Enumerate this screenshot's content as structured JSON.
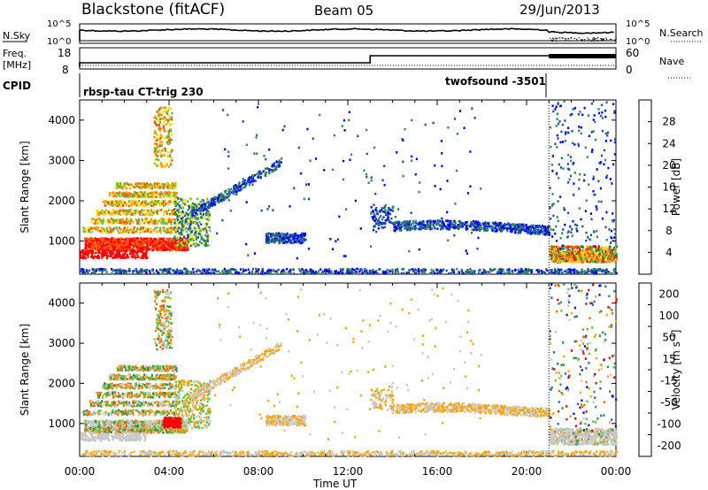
{
  "header": {
    "title": "Blackstone (fitACF)",
    "beam": "Beam 05",
    "date": "29/Jun/2013"
  },
  "top_panels": {
    "nsky_label": "N.Sky",
    "nsky_ticks": [
      "10^5",
      "10^0"
    ],
    "nsearch_label": "N.Search",
    "nsearch_ticks": [
      "10^5",
      "10^0"
    ],
    "freq_label": "Freq.",
    "freq_unit": "[MHz]",
    "freq_ticks": [
      "18",
      "8"
    ],
    "nave_label": "Nave",
    "nave_ticks": [
      "60",
      "0"
    ],
    "cpid_label": "CPID",
    "cpid_1": "rbsp-tau CT-trig 230",
    "cpid_2": "twofsound -3501"
  },
  "chart_data": [
    {
      "type": "heatmap",
      "title": "",
      "xlabel": "Time UT",
      "ylabel": "Slant Range [km]",
      "x_ticks": [
        "00:00",
        "04:00",
        "08:00",
        "12:00",
        "16:00",
        "20:00",
        "00:00"
      ],
      "y_ticks": [
        1000,
        2000,
        3000,
        4000
      ],
      "xlim": [
        0,
        24
      ],
      "ylim": [
        180,
        4500
      ],
      "colorbar": {
        "label": "Power [dB]",
        "ticks": [
          "4",
          "8",
          "12",
          "16",
          "20",
          "24",
          "28"
        ],
        "colors": [
          "#0000ff",
          "#1f4fa8",
          "#2e8b57",
          "#55c04a",
          "#ffe000",
          "#ffa500",
          "#ff5a00",
          "#ff0000"
        ]
      }
    },
    {
      "type": "heatmap",
      "title": "",
      "xlabel": "Time UT",
      "ylabel": "Slant Range [km]",
      "x_ticks": [
        "00:00",
        "04:00",
        "08:00",
        "12:00",
        "16:00",
        "20:00",
        "00:00"
      ],
      "y_ticks": [
        1000,
        2000,
        3000,
        4000
      ],
      "xlim": [
        0,
        24
      ],
      "ylim": [
        180,
        4500
      ],
      "colorbar": {
        "label": "Velocity [m s",
        "label_sup": "-1",
        "label_end": "]",
        "ticks": [
          "200",
          "100",
          "50",
          "15",
          "-15",
          "-50",
          "-100",
          "-200"
        ],
        "colors": [
          "#1010c0",
          "#2a6ab0",
          "#2f8f4f",
          "#60c040",
          "#c8c8c8",
          "#ffa500",
          "#ff6a00",
          "#ff0000"
        ]
      }
    }
  ],
  "axis_title": "Time UT"
}
